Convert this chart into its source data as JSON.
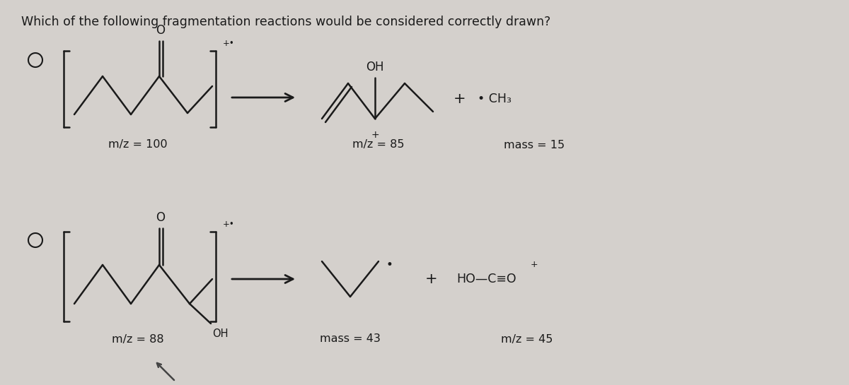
{
  "title": "Which of the following fragmentation reactions would be considered correctly drawn?",
  "title_fontsize": 12.5,
  "bg_color": "#d4d0cc",
  "text_color": "#1a1a1a",
  "label_fontsize": 11.5,
  "struct_lw": 1.8,
  "reaction1": {
    "label_mz_parent": "m/z = 100",
    "label_mz_product1": "m/z = 85",
    "label_product2": "mass = 15",
    "product2_text": "• CH₃"
  },
  "reaction2": {
    "label_mz_parent": "m/z = 88",
    "label_mz_product1": "mass = 43",
    "label_product2": "m/z = 45",
    "product2_text": "HO—C≡O"
  }
}
